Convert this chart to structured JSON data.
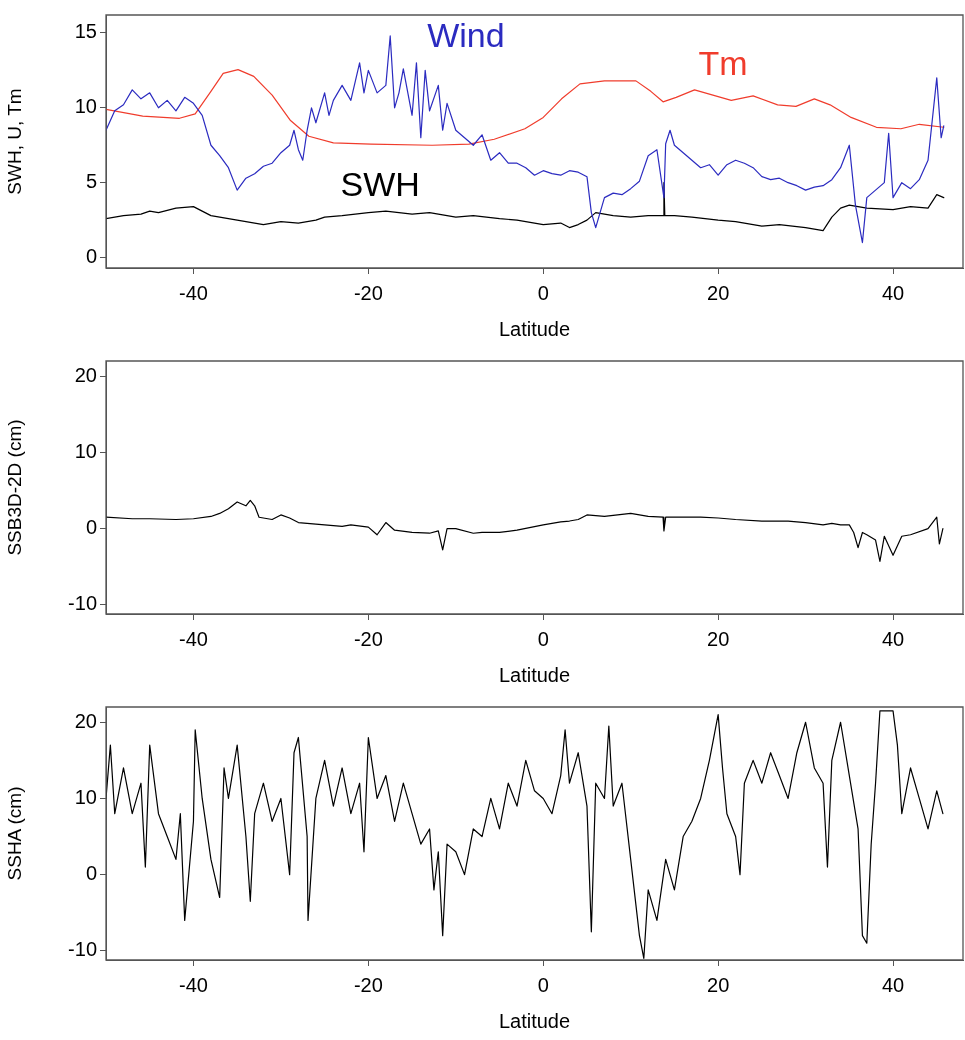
{
  "chart_data": [
    {
      "type": "line",
      "xlabel": "Latitude",
      "ylabel": "SWH, U, Tm",
      "xlim": [
        -50,
        48
      ],
      "xticks": [
        -40,
        -20,
        0,
        20,
        40
      ],
      "ylim": [
        -0.7,
        16.2
      ],
      "yticks": [
        0,
        5,
        10,
        15
      ],
      "grid": false,
      "legend": false,
      "marker": "none",
      "line_style": "solid",
      "series": [
        {
          "name": "Wind",
          "color": "#2b2bc0",
          "x": [
            -50,
            -49,
            -48,
            -47,
            -46,
            -45,
            -44,
            -43,
            -42,
            -41,
            -40,
            -39,
            -38,
            -37,
            -36,
            -35,
            -34,
            -33,
            -32,
            -31,
            -30,
            -29,
            -28.5,
            -28,
            -27.5,
            -27,
            -26.5,
            -26,
            -25,
            -24.5,
            -24,
            -23,
            -22,
            -21,
            -20.5,
            -20,
            -19,
            -18,
            -17.5,
            -17,
            -16.5,
            -16,
            -15,
            -14.5,
            -14,
            -13.5,
            -13,
            -12,
            -11.5,
            -11,
            -10,
            -9,
            -8,
            -7,
            -6,
            -5,
            -4,
            -3,
            -2,
            -1,
            0,
            1,
            2,
            3,
            4,
            5,
            5.5,
            6,
            7,
            8,
            9,
            10,
            11,
            12,
            13,
            13.8,
            14,
            14.5,
            15,
            16,
            17,
            18,
            19,
            20,
            21,
            22,
            23,
            24,
            25,
            26,
            27,
            28,
            29,
            30,
            31,
            32,
            33,
            34,
            35,
            35.7,
            36.5,
            37,
            38,
            39,
            39.5,
            40,
            41,
            42,
            43,
            44,
            45,
            45.5,
            45.8
          ],
          "values": [
            8.5,
            9.8,
            10.2,
            11.2,
            10.6,
            11,
            10,
            10.5,
            9.8,
            10.7,
            10.3,
            9.5,
            7.5,
            6.8,
            6,
            4.5,
            5.3,
            5.6,
            6.1,
            6.3,
            7,
            7.5,
            8.5,
            7.2,
            6.5,
            8.5,
            10,
            9,
            11,
            9.5,
            10.5,
            11.5,
            10.5,
            13,
            11,
            12.5,
            11,
            11.5,
            14.8,
            10,
            11,
            12.6,
            9.5,
            13,
            8,
            12.5,
            9.8,
            11.5,
            8.5,
            10.3,
            8.5,
            8,
            7.5,
            8.2,
            6.5,
            7,
            6.3,
            6.3,
            6,
            5.5,
            5.8,
            5.6,
            5.5,
            5.8,
            5.7,
            5.4,
            3,
            2,
            4,
            4.3,
            4.2,
            4.6,
            5.1,
            6.8,
            7.2,
            4,
            7.6,
            8.5,
            7.5,
            7,
            6.5,
            6,
            6.2,
            5.5,
            6.2,
            6.5,
            6.3,
            6,
            5.4,
            5.2,
            5.3,
            5,
            4.8,
            4.5,
            4.7,
            4.8,
            5.2,
            6,
            7.5,
            3.5,
            1,
            4,
            4.5,
            5,
            8.3,
            4,
            5,
            4.6,
            5.2,
            6.5,
            12,
            8,
            8.8
          ]
        },
        {
          "name": "Tm",
          "color": "#f03c2c",
          "x": [
            -50,
            -45.8,
            -41.6,
            -39.8,
            -38,
            -36.6,
            -34.9,
            -33.1,
            -31,
            -28.9,
            -26.8,
            -24,
            -19.7,
            -12.7,
            -8.5,
            -5.6,
            -2.1,
            0,
            2.1,
            4.2,
            7,
            10.6,
            12.3,
            13.7,
            15.2,
            17.3,
            19.4,
            21.5,
            24,
            26.8,
            28.9,
            31,
            32.8,
            35.2,
            38.1,
            40.9,
            43,
            45.8
          ],
          "values": [
            9.9,
            9.45,
            9.3,
            9.6,
            11.1,
            12.3,
            12.55,
            12.1,
            10.85,
            9.15,
            8.1,
            7.66,
            7.57,
            7.5,
            7.57,
            7.9,
            8.6,
            9.36,
            10.6,
            11.6,
            11.8,
            11.8,
            11.1,
            10.4,
            10.7,
            11.2,
            10.85,
            10.5,
            10.8,
            10.2,
            10.1,
            10.6,
            10.2,
            9.36,
            8.7,
            8.6,
            8.9,
            8.7
          ]
        },
        {
          "name": "SWH",
          "color": "#000000",
          "x": [
            -50,
            -48,
            -46,
            -45,
            -44,
            -42,
            -40,
            -39,
            -38,
            -36,
            -35,
            -33,
            -32,
            -30,
            -28,
            -26,
            -25,
            -23,
            -20,
            -18,
            -15,
            -13,
            -10,
            -8,
            -5,
            -3,
            0,
            2,
            3,
            4,
            5,
            6,
            8,
            10,
            12,
            13.7,
            13.8,
            13.9,
            15,
            17,
            20,
            22,
            25,
            27,
            30,
            31,
            32,
            33,
            34,
            35,
            37,
            40,
            42,
            44,
            45,
            45.8
          ],
          "values": [
            2.6,
            2.8,
            2.9,
            3.1,
            3,
            3.3,
            3.4,
            3.1,
            2.8,
            2.6,
            2.5,
            2.3,
            2.2,
            2.4,
            2.3,
            2.5,
            2.7,
            2.8,
            3,
            3.1,
            2.9,
            3,
            2.7,
            2.8,
            2.6,
            2.5,
            2.2,
            2.3,
            2,
            2.2,
            2.5,
            3,
            2.8,
            2.7,
            2.8,
            2.8,
            5,
            2.8,
            2.8,
            2.7,
            2.5,
            2.4,
            2.1,
            2.2,
            2,
            1.9,
            1.8,
            2.7,
            3.3,
            3.5,
            3.3,
            3.2,
            3.4,
            3.3,
            4.2,
            4
          ]
        }
      ]
    },
    {
      "type": "line",
      "xlabel": "Latitude",
      "ylabel": "SSB3D-2D (cm)",
      "xlim": [
        -50,
        48
      ],
      "xticks": [
        -40,
        -20,
        0,
        20,
        40
      ],
      "ylim": [
        -11.2,
        22
      ],
      "yticks": [
        -10,
        0,
        10,
        20
      ],
      "grid": false,
      "legend": false,
      "marker": "none",
      "line_style": "solid",
      "series": [
        {
          "color": "#000000",
          "x": [
            -50,
            -47,
            -45,
            -42,
            -40,
            -38,
            -37,
            -36,
            -35,
            -34,
            -33.5,
            -33,
            -32.5,
            -31,
            -30,
            -29,
            -28,
            -26,
            -25,
            -23,
            -22,
            -20,
            -19,
            -18,
            -17,
            -15,
            -13,
            -12,
            -11.5,
            -11,
            -10,
            -8,
            -7,
            -5,
            -3,
            0,
            2,
            3,
            4,
            5,
            7,
            10,
            12,
            13.7,
            13.8,
            14,
            15,
            18,
            20,
            22,
            25,
            28,
            30,
            32,
            33,
            34,
            35,
            35.5,
            36,
            36.5,
            37,
            38,
            38.5,
            39,
            40,
            41,
            42,
            44,
            45,
            45.3,
            45.7
          ],
          "values": [
            1.5,
            1.3,
            1.3,
            1.2,
            1.3,
            1.6,
            2,
            2.6,
            3.5,
            3,
            3.7,
            3,
            1.5,
            1.2,
            1.8,
            1.4,
            0.8,
            0.6,
            0.5,
            0.3,
            0.5,
            0.2,
            -0.8,
            0.8,
            -0.2,
            -0.5,
            -0.6,
            -0.3,
            -2.8,
            0,
            0,
            -0.6,
            -0.5,
            -0.5,
            -0.2,
            0.5,
            0.9,
            1,
            1.2,
            1.8,
            1.6,
            2,
            1.6,
            1.5,
            -0.3,
            1.5,
            1.5,
            1.5,
            1.4,
            1.2,
            1,
            1,
            0.8,
            0.5,
            0.7,
            0.5,
            0.5,
            -0.5,
            -2.5,
            -0.5,
            -0.8,
            -1.5,
            -4.3,
            -1,
            -3.5,
            -1,
            -0.8,
            0,
            1.5,
            -2,
            0
          ]
        }
      ]
    },
    {
      "type": "line",
      "xlabel": "Latitude",
      "ylabel": "SSHA (cm)",
      "xlim": [
        -50,
        48
      ],
      "xticks": [
        -40,
        -20,
        0,
        20,
        40
      ],
      "ylim": [
        -11.2,
        22
      ],
      "yticks": [
        -10,
        0,
        10,
        20
      ],
      "grid": false,
      "legend": false,
      "marker": "none",
      "line_style": "solid",
      "series": [
        {
          "color": "#000000",
          "x": [
            -50,
            -49.5,
            -49,
            -48,
            -47,
            -46,
            -45.5,
            -45,
            -44,
            -43,
            -42,
            -41.5,
            -41,
            -40,
            -39.8,
            -39,
            -38,
            -37,
            -36.5,
            -36,
            -35,
            -34,
            -33.5,
            -33,
            -32,
            -31,
            -30,
            -29,
            -28.5,
            -28,
            -27,
            -26.9,
            -26,
            -25,
            -24,
            -23,
            -22,
            -21,
            -20.5,
            -20,
            -19,
            -18,
            -17,
            -16,
            -15,
            -14,
            -13,
            -12.5,
            -12,
            -11.5,
            -11,
            -10,
            -9,
            -8,
            -7,
            -6,
            -5,
            -4,
            -3,
            -2,
            -1,
            0,
            1,
            2,
            2.5,
            3,
            4,
            5,
            5.5,
            6,
            7,
            7.5,
            8,
            9,
            10,
            11,
            11.5,
            12,
            13,
            14,
            15,
            16,
            17,
            18,
            19,
            20,
            20.5,
            21,
            22,
            22.5,
            23,
            24,
            25,
            26,
            27,
            28,
            29,
            30,
            31,
            32,
            32.5,
            33,
            34,
            35,
            36,
            36.5,
            37,
            37.5,
            38,
            38.5,
            40,
            40.5,
            41,
            42,
            43,
            44,
            45,
            45.7
          ],
          "values": [
            10,
            17,
            8,
            14,
            8,
            12,
            1,
            17,
            8,
            5,
            2,
            8,
            -6,
            7,
            19,
            10,
            2,
            -3,
            14,
            10,
            17,
            5,
            -3.5,
            8,
            12,
            7,
            10,
            0,
            16,
            18,
            5,
            -6,
            10,
            15,
            9,
            14,
            8,
            12,
            3,
            18,
            10,
            13,
            7,
            12,
            8,
            4,
            6,
            -2,
            3,
            -8,
            4,
            3,
            0,
            6,
            5,
            10,
            6,
            12,
            9,
            15,
            11,
            10,
            8,
            13,
            19,
            12,
            16,
            9,
            -7.5,
            12,
            10,
            19.5,
            9,
            12,
            2,
            -8,
            -11,
            -2,
            -6,
            2,
            -2,
            5,
            7,
            10,
            15,
            21,
            14,
            8,
            5,
            0,
            12,
            15,
            12,
            16,
            13,
            10,
            16,
            20,
            14,
            12,
            1,
            15,
            20,
            13,
            6,
            -8,
            -9,
            4,
            12,
            21.5,
            21.5,
            17,
            8,
            14,
            10,
            6,
            11,
            8
          ]
        }
      ]
    }
  ]
}
